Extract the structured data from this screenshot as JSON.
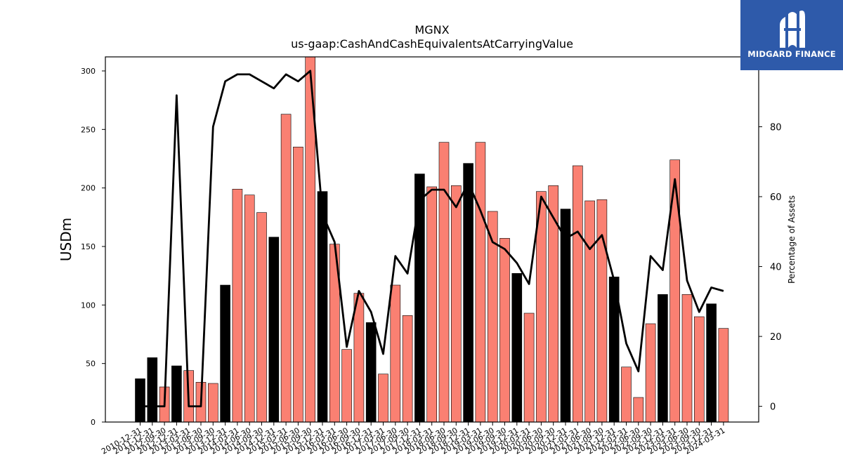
{
  "chart_data": {
    "type": "bar",
    "title": "MGNX",
    "subtitle": "us-gaap:CashAndCashEquivalentsAtCarryingValue",
    "ylabel": "USDm",
    "ylabel_right": "Percentage of Assets",
    "ylim": [
      0,
      312
    ],
    "ylim_right": [
      -4.5,
      100
    ],
    "yticks": [
      0,
      50,
      100,
      150,
      200,
      250,
      300
    ],
    "yticks_right": [
      0,
      20,
      40,
      60,
      80
    ],
    "categories": [
      "2010-12-31",
      "2011-12-31",
      "2012-09-30",
      "2012-12-31",
      "2013-03-31",
      "2013-06-30",
      "2013-09-30",
      "2013-12-31",
      "2014-03-31",
      "2014-06-30",
      "2014-09-30",
      "2014-12-31",
      "2015-03-31",
      "2015-06-30",
      "2015-09-30",
      "2015-12-31",
      "2016-03-31",
      "2016-06-30",
      "2016-09-30",
      "2016-12-31",
      "2017-03-31",
      "2017-06-30",
      "2017-09-30",
      "2017-12-31",
      "2018-03-31",
      "2018-06-30",
      "2018-09-30",
      "2018-12-31",
      "2019-03-31",
      "2019-06-30",
      "2019-09-30",
      "2019-12-31",
      "2020-03-31",
      "2020-06-30",
      "2020-09-30",
      "2020-12-31",
      "2021-03-31",
      "2021-06-30",
      "2021-09-30",
      "2021-12-31",
      "2022-03-31",
      "2022-06-30",
      "2022-09-30",
      "2022-12-31",
      "2023-03-31",
      "2023-06-30",
      "2023-09-30",
      "2023-12-31",
      "2024-03-31"
    ],
    "series": [
      {
        "kind": "bar",
        "values": [
          37,
          55,
          30,
          48,
          44,
          34,
          33,
          117,
          199,
          194,
          179,
          158,
          263,
          235,
          312,
          197,
          152,
          62,
          110,
          85,
          41,
          117,
          91,
          212,
          201,
          239,
          202,
          221,
          239,
          180,
          157,
          127,
          93,
          197,
          202,
          182,
          219,
          189,
          190,
          124,
          47,
          21,
          84,
          109,
          224,
          109,
          90,
          101,
          80
        ],
        "annual_flags": [
          1,
          1,
          0,
          1,
          0,
          0,
          0,
          1,
          0,
          0,
          0,
          1,
          0,
          0,
          0,
          1,
          0,
          0,
          0,
          1,
          0,
          0,
          0,
          1,
          0,
          0,
          0,
          1,
          0,
          0,
          0,
          1,
          0,
          0,
          0,
          1,
          0,
          0,
          0,
          1,
          0,
          0,
          0,
          1,
          0,
          0,
          0,
          1,
          0
        ],
        "color_annual": "#000000",
        "color_quarterly": "#fa8072"
      },
      {
        "kind": "line",
        "axis": "right",
        "values": [
          0,
          0,
          0,
          89,
          0,
          0,
          80,
          93,
          95,
          95,
          93,
          91,
          95,
          93,
          96,
          55,
          47,
          17,
          33,
          27,
          15,
          43,
          38,
          59,
          62,
          62,
          57,
          64,
          56,
          47,
          45,
          41,
          35,
          60,
          54,
          48,
          50,
          45,
          49,
          36,
          18,
          10,
          43,
          39,
          65,
          36,
          27,
          34,
          33
        ],
        "color": "#000000"
      }
    ]
  },
  "logo": {
    "text": "MIDGARD FINANCE",
    "color": "#2e5aaa"
  }
}
